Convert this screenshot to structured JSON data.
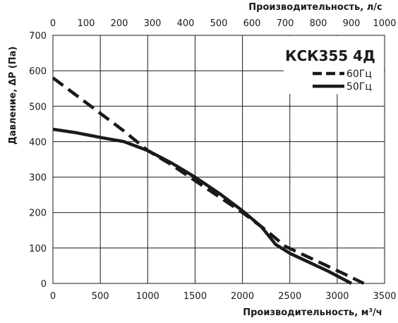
{
  "chart_data": {
    "type": "line",
    "title": "КСК355 4Д",
    "xlabel": "Производительность, м³/ч",
    "ylabel": "Давление, ΔP (Па)",
    "x2label": "Производительность, л/с",
    "xlim": [
      0,
      3500
    ],
    "ylim": [
      0,
      700
    ],
    "x2lim": [
      0,
      1000
    ],
    "x_ticks": [
      "0",
      "500",
      "1000",
      "1500",
      "2000",
      "2500",
      "3000",
      "3500"
    ],
    "y_ticks": [
      "0",
      "100",
      "200",
      "300",
      "400",
      "500",
      "600",
      "700"
    ],
    "x2_ticks": [
      "0",
      "100",
      "200",
      "300",
      "400",
      "500",
      "600",
      "700",
      "800",
      "900",
      "1000"
    ],
    "grid": true,
    "legend_position": "top-right",
    "series": [
      {
        "name": "60Гц",
        "style": "dashed",
        "color": "#1a1a1a",
        "x": [
          0,
          250,
          500,
          750,
          1000,
          1250,
          1500,
          1750,
          2000,
          2250,
          2450,
          2650,
          2850,
          3050,
          3280
        ],
        "y": [
          580,
          530,
          480,
          430,
          375,
          335,
          290,
          245,
          200,
          150,
          105,
          80,
          55,
          30,
          0
        ]
      },
      {
        "name": "50Гц",
        "style": "solid",
        "color": "#1a1a1a",
        "x": [
          0,
          250,
          500,
          750,
          1000,
          1250,
          1500,
          1750,
          2000,
          2200,
          2350,
          2500,
          2700,
          2900,
          3150
        ],
        "y": [
          435,
          425,
          412,
          400,
          375,
          340,
          300,
          255,
          205,
          160,
          110,
          85,
          60,
          35,
          0
        ]
      }
    ]
  }
}
